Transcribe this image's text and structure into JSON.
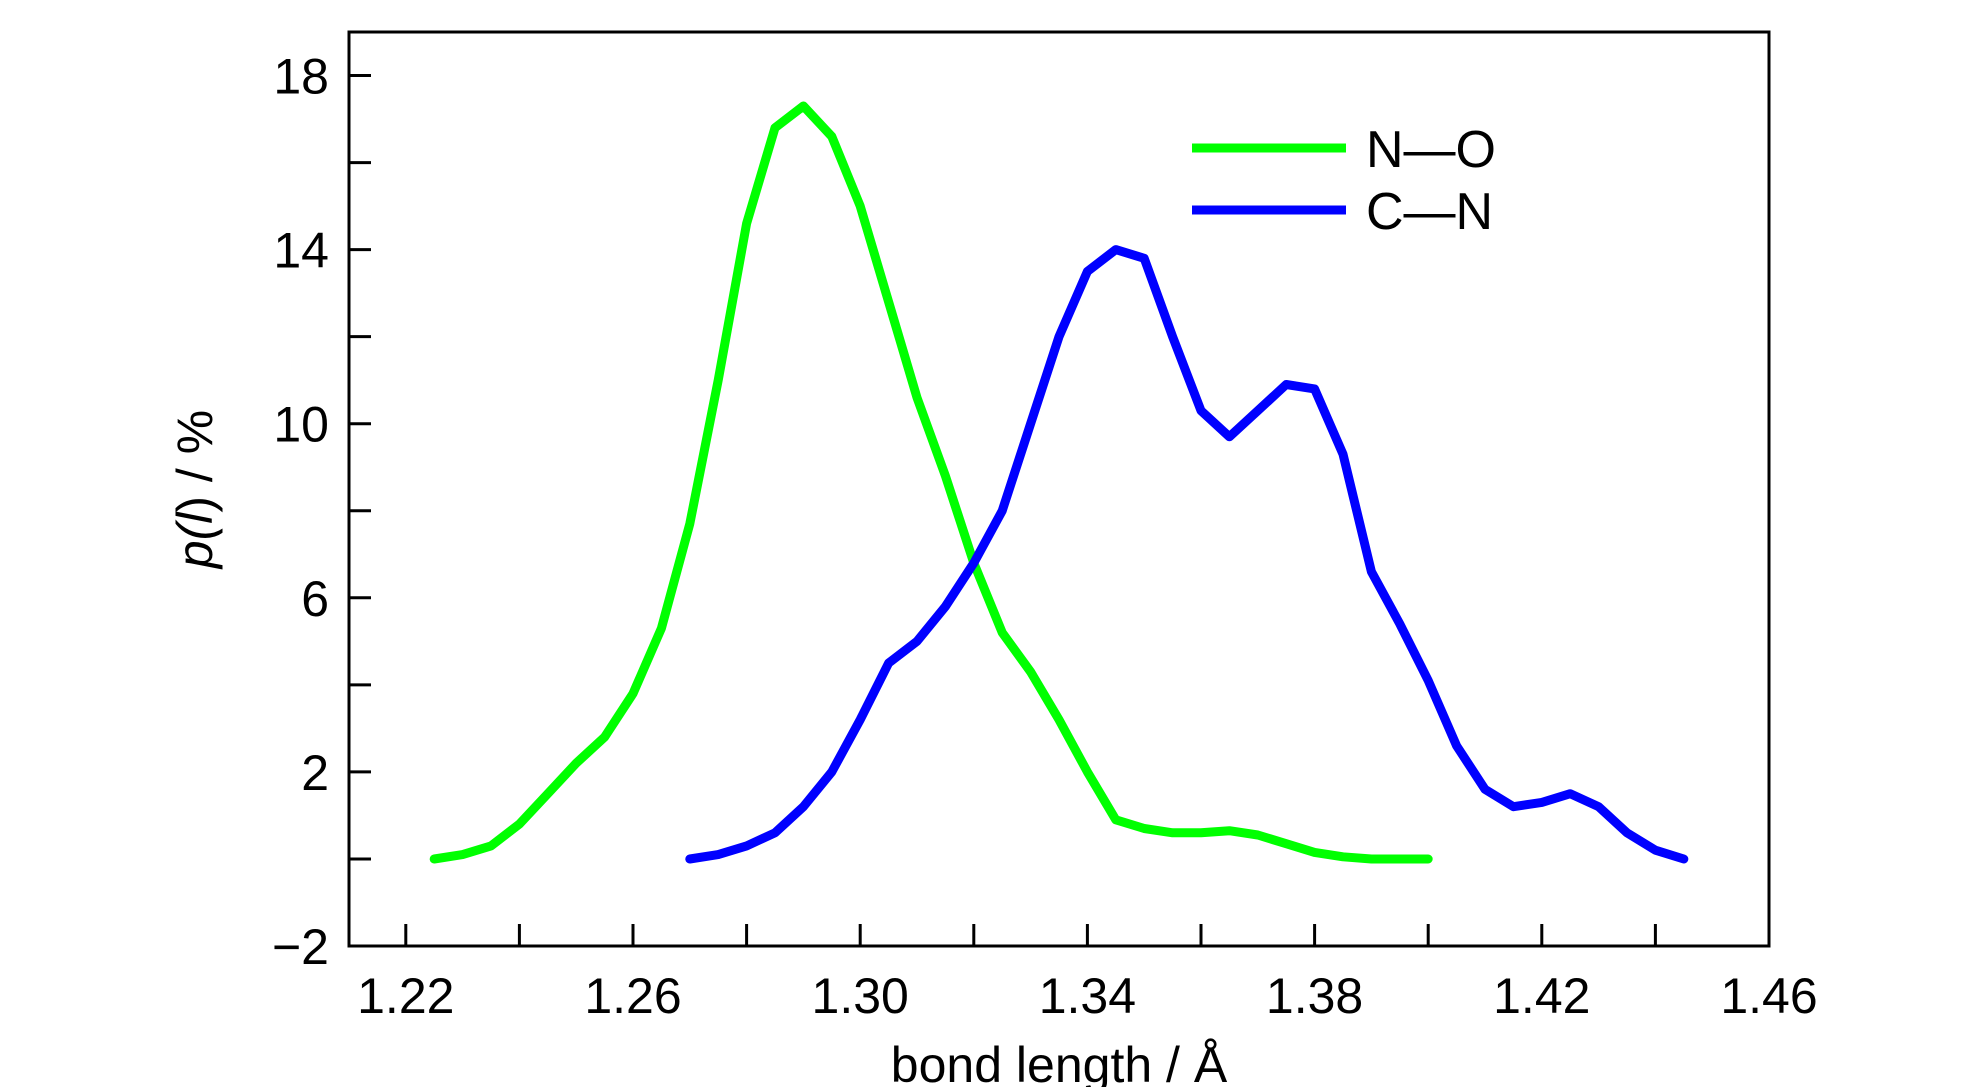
{
  "chart_data": {
    "type": "line",
    "title": "",
    "xlabel": "bond length / Å",
    "ylabel_parts": [
      "p(",
      "l",
      ") / %"
    ],
    "xlim": [
      1.21,
      1.46
    ],
    "ylim": [
      -2,
      19
    ],
    "x_ticks": [
      1.22,
      1.26,
      1.3,
      1.34,
      1.38,
      1.42,
      1.46
    ],
    "x_tick_labels": [
      "1.22",
      "1.26",
      "1.30",
      "1.34",
      "1.38",
      "1.42",
      "1.46"
    ],
    "y_ticks": [
      -2,
      2,
      6,
      10,
      14,
      18
    ],
    "y_tick_labels": [
      "−2",
      "2",
      "6",
      "10",
      "14",
      "18"
    ],
    "grid": false,
    "legend_position": "top-right",
    "series": [
      {
        "name": "N—O",
        "color": "#00ff00",
        "x": [
          1.225,
          1.23,
          1.235,
          1.24,
          1.245,
          1.25,
          1.255,
          1.26,
          1.265,
          1.27,
          1.275,
          1.28,
          1.285,
          1.29,
          1.295,
          1.3,
          1.305,
          1.31,
          1.315,
          1.32,
          1.325,
          1.33,
          1.335,
          1.34,
          1.345,
          1.35,
          1.355,
          1.36,
          1.365,
          1.37,
          1.375,
          1.38,
          1.385,
          1.39,
          1.395,
          1.4
        ],
        "y": [
          0.0,
          0.1,
          0.3,
          0.8,
          1.5,
          2.2,
          2.8,
          3.8,
          5.3,
          7.7,
          11.0,
          14.6,
          16.8,
          17.3,
          16.6,
          15.0,
          12.8,
          10.6,
          8.8,
          6.8,
          5.2,
          4.3,
          3.2,
          2.0,
          0.9,
          0.7,
          0.6,
          0.6,
          0.65,
          0.55,
          0.35,
          0.15,
          0.05,
          0.0,
          0.0,
          0.0
        ]
      },
      {
        "name": "C—N",
        "color": "#0000ff",
        "x": [
          1.27,
          1.275,
          1.28,
          1.285,
          1.29,
          1.295,
          1.3,
          1.305,
          1.31,
          1.315,
          1.32,
          1.325,
          1.33,
          1.335,
          1.34,
          1.345,
          1.35,
          1.355,
          1.36,
          1.365,
          1.37,
          1.375,
          1.38,
          1.385,
          1.39,
          1.395,
          1.4,
          1.405,
          1.41,
          1.415,
          1.42,
          1.425,
          1.43,
          1.435,
          1.44,
          1.445
        ],
        "y": [
          0.0,
          0.1,
          0.3,
          0.6,
          1.2,
          2.0,
          3.2,
          4.5,
          5.0,
          5.8,
          6.8,
          8.0,
          10.0,
          12.0,
          13.5,
          14.0,
          13.8,
          12.0,
          10.3,
          9.7,
          10.3,
          10.9,
          10.8,
          9.3,
          6.6,
          5.4,
          4.1,
          2.6,
          1.6,
          1.2,
          1.3,
          1.5,
          1.2,
          0.6,
          0.2,
          0.0
        ]
      }
    ]
  }
}
